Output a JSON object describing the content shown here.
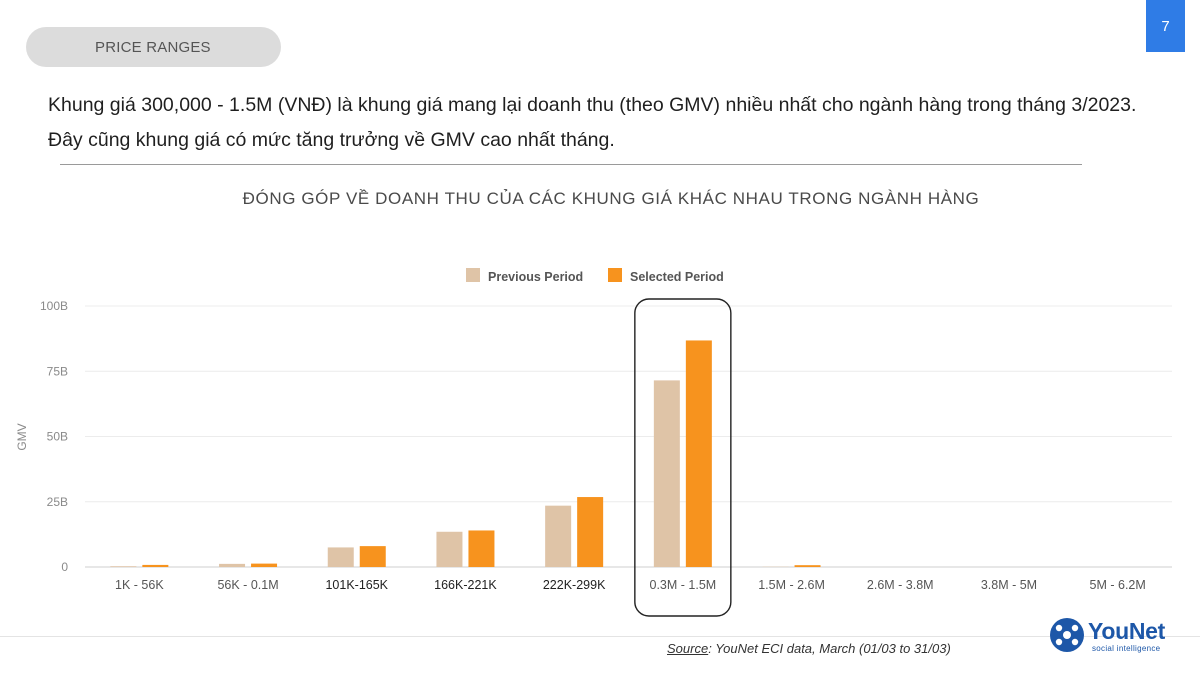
{
  "header": {
    "section_label": "PRICE RANGES",
    "page_number": "7"
  },
  "intro": {
    "text": "Khung giá 300,000 - 1.5M (VNĐ) là khung giá mang lại doanh thu (theo GMV) nhiều nhất cho ngành hàng trong tháng 3/2023. Đây cũng khung giá có mức tăng trưởng về GMV cao nhất tháng."
  },
  "chart_data": {
    "type": "bar",
    "title": "ĐÓNG GÓP VỀ DOANH THU CỦA CÁC KHUNG GIÁ KHÁC NHAU TRONG NGÀNH HÀNG",
    "ylabel": "GMV",
    "xlabel": "",
    "ylim": [
      0,
      100
    ],
    "yticks": [
      {
        "value": 0,
        "label": "0"
      },
      {
        "value": 25,
        "label": "25B"
      },
      {
        "value": 50,
        "label": "50B"
      },
      {
        "value": 75,
        "label": "75B"
      },
      {
        "value": 100,
        "label": "100B"
      }
    ],
    "grid": true,
    "legend_position": "top-center",
    "categories": [
      "1K - 56K",
      "56K - 0.1M",
      "101K-165K",
      "166K-221K",
      "222K-299K",
      "0.3M - 1.5M",
      "1.5M - 2.6M",
      "2.6M - 3.8M",
      "3.8M - 5M",
      "5M - 6.2M"
    ],
    "series": [
      {
        "name": "Previous Period",
        "color": "#dfc4a7",
        "values": [
          0.3,
          1.2,
          7.5,
          13.5,
          23.5,
          71.5,
          0.1,
          0,
          0,
          0
        ]
      },
      {
        "name": "Selected Period",
        "color": "#f7931e",
        "values": [
          0.8,
          1.3,
          8.0,
          14.0,
          26.8,
          86.8,
          0.7,
          0,
          0,
          0
        ]
      }
    ],
    "highlight_category": "0.3M - 1.5M"
  },
  "footer": {
    "source_label": "Source",
    "source_text": ": YouNet ECI data, March (01/03 to 31/03)",
    "logo_text": "YouNet",
    "logo_sub": "social intelligence"
  },
  "colors": {
    "accent_blue": "#2f7ce6",
    "logo_blue": "#1d57a8"
  }
}
